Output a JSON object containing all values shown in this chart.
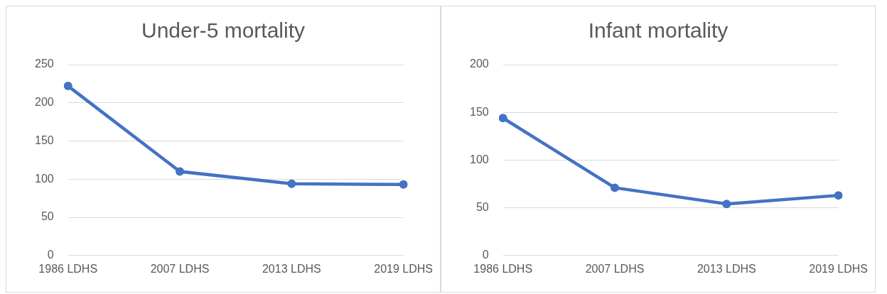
{
  "chart_data": [
    {
      "type": "line",
      "title": "Under-5 mortality",
      "categories": [
        "1986 LDHS",
        "2007 LDHS",
        "2013 LDHS",
        "2019 LDHS"
      ],
      "series": [
        {
          "color": "#4472c4",
          "values": [
            222,
            110,
            94,
            93
          ]
        }
      ],
      "ylim": [
        0,
        250
      ],
      "yticks": [
        0,
        50,
        100,
        150,
        200,
        250
      ],
      "grid": "y",
      "marker": "circle",
      "legend": false
    },
    {
      "type": "line",
      "title": "Infant mortality",
      "categories": [
        "1986 LDHS",
        "2007 LDHS",
        "2013 LDHS",
        "2019 LDHS"
      ],
      "series": [
        {
          "color": "#4472c4",
          "values": [
            144,
            71,
            54,
            63
          ]
        }
      ],
      "ylim": [
        0,
        200
      ],
      "yticks": [
        0,
        50,
        100,
        150,
        200
      ],
      "grid": "y",
      "marker": "circle",
      "legend": false
    }
  ]
}
